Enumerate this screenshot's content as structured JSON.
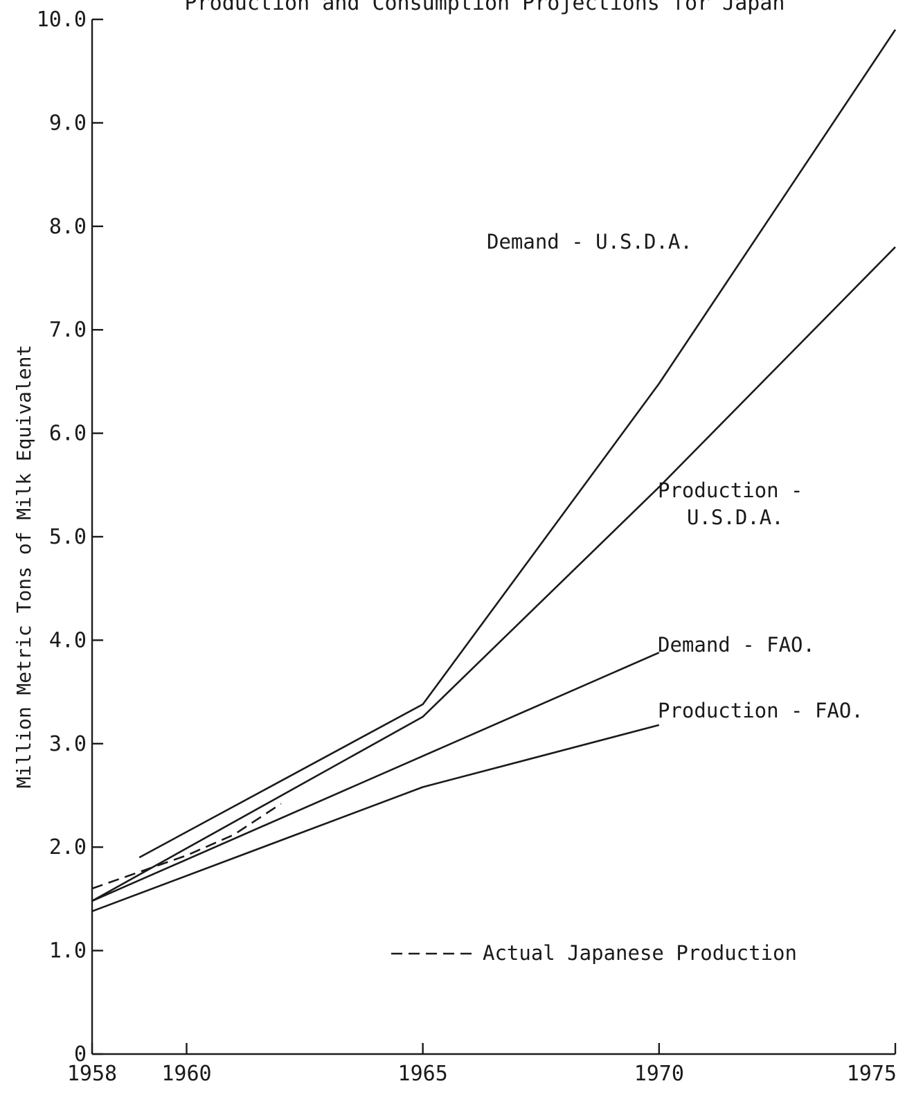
{
  "chart_data": {
    "type": "line",
    "title": "Production and Consumption Projections for Japan",
    "ylabel": "Million Metric Tons of Milk Equivalent",
    "xlabel": "",
    "xlim": [
      1958,
      1975
    ],
    "ylim": [
      0,
      10
    ],
    "grid": false,
    "x_ticks": [
      "1958",
      "1960",
      "1965",
      "1970",
      "1975"
    ],
    "y_ticks": [
      "0",
      "1.0",
      "2.0",
      "3.0",
      "4.0",
      "5.0",
      "6.0",
      "7.0",
      "8.0",
      "9.0",
      "10.0"
    ],
    "series": [
      {
        "name": "Demand - U.S.D.A.",
        "style": "solid",
        "points": [
          [
            1959,
            1.9
          ],
          [
            1965,
            3.38
          ],
          [
            1970,
            6.48
          ],
          [
            1975,
            9.9
          ]
        ]
      },
      {
        "name": "Production - U.S.D.A.",
        "style": "solid",
        "points": [
          [
            1958,
            1.48
          ],
          [
            1965,
            3.26
          ],
          [
            1970,
            5.48
          ],
          [
            1975,
            7.8
          ]
        ]
      },
      {
        "name": "Demand - FAO.",
        "style": "solid",
        "points": [
          [
            1958,
            1.48
          ],
          [
            1965,
            2.88
          ],
          [
            1970,
            3.88
          ]
        ]
      },
      {
        "name": "Production - FAO.",
        "style": "solid",
        "points": [
          [
            1958,
            1.38
          ],
          [
            1965,
            2.58
          ],
          [
            1970,
            3.18
          ]
        ]
      },
      {
        "name": "Actual Japanese Production",
        "style": "dashed",
        "points": [
          [
            1958,
            1.6
          ],
          [
            1959,
            1.76
          ],
          [
            1960,
            1.92
          ],
          [
            1961,
            2.12
          ],
          [
            1962,
            2.42
          ]
        ]
      }
    ],
    "annotations": [
      {
        "text": "Demand - U.S.D.A.",
        "series": 0
      },
      {
        "text": "Production -",
        "series": 1
      },
      {
        "text": "U.S.D.A.",
        "series": 1
      },
      {
        "text": "Demand - FAO.",
        "series": 2
      },
      {
        "text": "Production - FAO.",
        "series": 3
      }
    ],
    "legend": {
      "marker": "-----",
      "label": "Actual Japanese Production",
      "position": "bottom-right"
    }
  }
}
